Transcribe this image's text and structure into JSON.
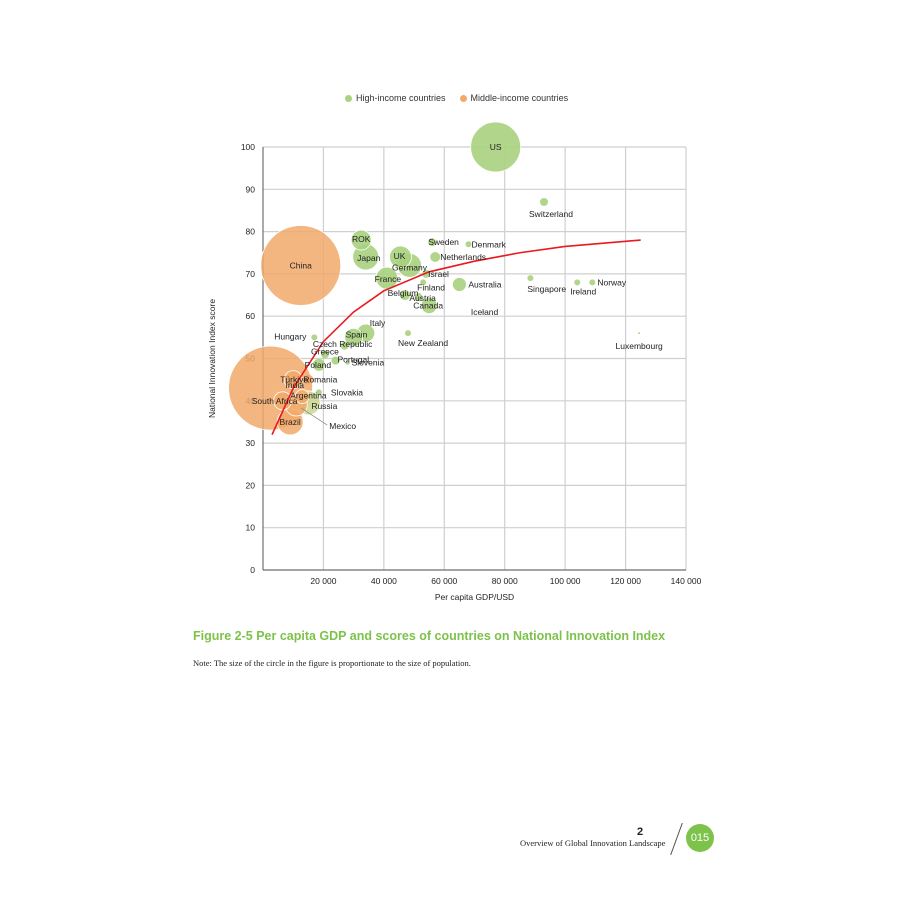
{
  "legend": {
    "high_income": {
      "label": "High-income countries",
      "color": "#a8d27e"
    },
    "middle_income": {
      "label": "Middle-income countries",
      "color": "#f2a96a"
    }
  },
  "caption": "Figure 2-5   Per capita GDP and scores of countries on National Innovation Index",
  "note": "Note: The size of the circle in the figure is proportionate to the size of population.",
  "footer": {
    "chapter_number": "2",
    "chapter_title": "Overview of Global  Innovation Landscape",
    "page_number": "015"
  },
  "chart_data": {
    "type": "scatter",
    "subtype": "bubble",
    "title": "Per capita GDP and scores of countries on National Innovation Index",
    "xlabel": "Per capita GDP/USD",
    "ylabel": "National Innovation Index score",
    "xlim": [
      0,
      140000
    ],
    "ylim": [
      0,
      100
    ],
    "x_ticks": [
      "20 000",
      "40 000",
      "60 000",
      "80 000",
      "100 000",
      "120 000",
      "140 000"
    ],
    "y_ticks": [
      "0",
      "10",
      "20",
      "30",
      "40",
      "50",
      "60",
      "70",
      "80",
      "90",
      "100"
    ],
    "grid": true,
    "legend_position": "top",
    "series": [
      {
        "name": "High-income countries",
        "color": "#a8d27e",
        "points": [
          {
            "label": "US",
            "x": 77000,
            "y": 100,
            "r": 25
          },
          {
            "label": "Switzerland",
            "x": 93000,
            "y": 87,
            "r": 4
          },
          {
            "label": "ROK",
            "x": 32500,
            "y": 78,
            "r": 10
          },
          {
            "label": "Japan",
            "x": 34000,
            "y": 74,
            "r": 13
          },
          {
            "label": "Sweden",
            "x": 56000,
            "y": 77.5,
            "r": 4
          },
          {
            "label": "Denmark",
            "x": 68000,
            "y": 77,
            "r": 3
          },
          {
            "label": "UK",
            "x": 45500,
            "y": 74,
            "r": 11
          },
          {
            "label": "Germany",
            "x": 48500,
            "y": 72,
            "r": 12
          },
          {
            "label": "Netherlands",
            "x": 57000,
            "y": 74,
            "r": 5
          },
          {
            "label": "France",
            "x": 41000,
            "y": 69,
            "r": 11
          },
          {
            "label": "Israel",
            "x": 54000,
            "y": 70,
            "r": 4
          },
          {
            "label": "Finland",
            "x": 53000,
            "y": 68,
            "r": 3
          },
          {
            "label": "Australia",
            "x": 65000,
            "y": 67.5,
            "r": 7
          },
          {
            "label": "Singapore",
            "x": 88500,
            "y": 69,
            "r": 3
          },
          {
            "label": "Ireland",
            "x": 104000,
            "y": 68,
            "r": 3
          },
          {
            "label": "Norway",
            "x": 109000,
            "y": 68,
            "r": 3
          },
          {
            "label": "Belgium",
            "x": 47000,
            "y": 65,
            "r": 5
          },
          {
            "label": "Austria",
            "x": 51500,
            "y": 64.5,
            "r": 4
          },
          {
            "label": "Canada",
            "x": 55000,
            "y": 62.5,
            "r": 8
          },
          {
            "label": "Iceland",
            "x": 73000,
            "y": 61,
            "r": 1
          },
          {
            "label": "Luxembourg",
            "x": 124500,
            "y": 56,
            "r": 1
          },
          {
            "label": "New Zealand",
            "x": 48000,
            "y": 56,
            "r": 3
          },
          {
            "label": "Italy",
            "x": 34000,
            "y": 56,
            "r": 9
          },
          {
            "label": "Spain",
            "x": 30000,
            "y": 55,
            "r": 9
          },
          {
            "label": "Hungary",
            "x": 17000,
            "y": 55,
            "r": 3
          },
          {
            "label": "Czech Republic",
            "x": 27000,
            "y": 53,
            "r": 4
          },
          {
            "label": "Greece",
            "x": 20500,
            "y": 51,
            "r": 4
          },
          {
            "label": "Portugal",
            "x": 24000,
            "y": 49.5,
            "r": 4
          },
          {
            "label": "Poland",
            "x": 18500,
            "y": 48.5,
            "r": 6
          },
          {
            "label": "Slovenia",
            "x": 28000,
            "y": 49,
            "r": 2
          },
          {
            "label": "Slovakia",
            "x": 18500,
            "y": 42,
            "r": 3
          }
        ]
      },
      {
        "name": "Middle-income countries",
        "color": "#f2a96a",
        "points": [
          {
            "label": "China",
            "x": 12500,
            "y": 72,
            "r": 40
          },
          {
            "label": "India",
            "x": 2500,
            "y": 43,
            "r": 42
          },
          {
            "label": "Türkiye",
            "x": 10000,
            "y": 45,
            "r": 9
          },
          {
            "label": "Romania",
            "x": 15000,
            "y": 45,
            "r": 5
          },
          {
            "label": "Argentina",
            "x": 13000,
            "y": 41,
            "r": 7
          },
          {
            "label": "South Africa",
            "x": 6500,
            "y": 40,
            "r": 9
          },
          {
            "label": "Russia",
            "x": 15000,
            "y": 39.5,
            "r": 12,
            "note": "rendered green-tinted"
          },
          {
            "label": "Mexico",
            "x": 11000,
            "y": 39,
            "r": 11
          },
          {
            "label": "Brazil",
            "x": 9000,
            "y": 35,
            "r": 13
          }
        ]
      }
    ],
    "trendline": {
      "type": "logarithmic",
      "color": "#e8191f",
      "points": [
        [
          3000,
          32
        ],
        [
          10000,
          43
        ],
        [
          20000,
          54
        ],
        [
          30000,
          61
        ],
        [
          40000,
          66
        ],
        [
          55000,
          70.5
        ],
        [
          70000,
          73
        ],
        [
          85000,
          75
        ],
        [
          100000,
          76.5
        ],
        [
          125000,
          78
        ]
      ]
    }
  }
}
